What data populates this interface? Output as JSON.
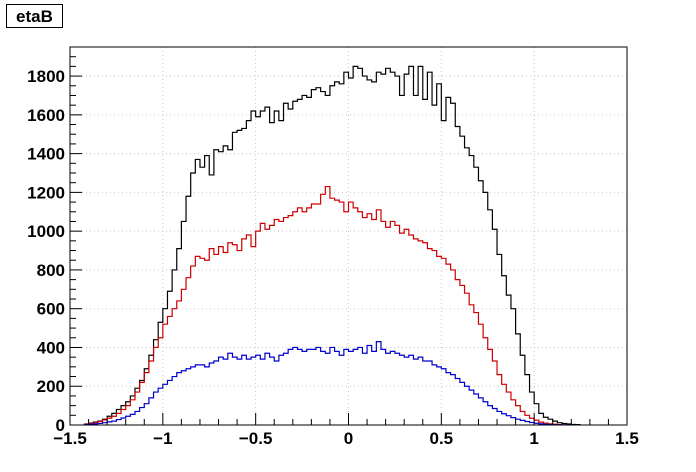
{
  "title": "etaB",
  "chart_data": {
    "type": "histogram",
    "title": "etaB",
    "xlabel": "",
    "ylabel": "",
    "xlim": [
      -1.5,
      1.5
    ],
    "ylim": [
      0,
      1950
    ],
    "grid": true,
    "bin_width": 0.025,
    "x_ticks": [
      -1.5,
      -1,
      -0.5,
      0,
      0.5,
      1,
      1.5
    ],
    "x_tick_labels": [
      "−1.5",
      "−1",
      "−0.5",
      "0",
      "0.5",
      "1",
      "1.5"
    ],
    "y_ticks": [
      0,
      200,
      400,
      600,
      800,
      1000,
      1200,
      1400,
      1600,
      1800
    ],
    "y_tick_labels": [
      "0",
      "200",
      "400",
      "600",
      "800",
      "1000",
      "1200",
      "1400",
      "1600",
      "1800"
    ],
    "series": [
      {
        "color": "#000000",
        "x_start": -1.425,
        "values": [
          5,
          10,
          15,
          20,
          30,
          45,
          60,
          80,
          100,
          120,
          150,
          190,
          230,
          290,
          360,
          440,
          530,
          600,
          690,
          800,
          910,
          1050,
          1180,
          1300,
          1370,
          1330,
          1390,
          1290,
          1420,
          1410,
          1440,
          1420,
          1510,
          1520,
          1530,
          1570,
          1620,
          1590,
          1620,
          1640,
          1560,
          1620,
          1570,
          1660,
          1630,
          1670,
          1680,
          1700,
          1690,
          1730,
          1740,
          1720,
          1700,
          1750,
          1770,
          1760,
          1820,
          1790,
          1850,
          1840,
          1800,
          1780,
          1770,
          1820,
          1810,
          1840,
          1820,
          1800,
          1700,
          1810,
          1850,
          1700,
          1850,
          1680,
          1820,
          1650,
          1760,
          1570,
          1690,
          1660,
          1540,
          1490,
          1430,
          1390,
          1330,
          1260,
          1200,
          1110,
          1010,
          880,
          770,
          670,
          600,
          470,
          360,
          260,
          170,
          110,
          60,
          40,
          30,
          20,
          12,
          8,
          5,
          3,
          2
        ]
      },
      {
        "color": "#cc0000",
        "x_start": -1.425,
        "values": [
          4,
          8,
          12,
          18,
          26,
          35,
          45,
          60,
          80,
          100,
          130,
          170,
          220,
          270,
          330,
          400,
          450,
          520,
          560,
          600,
          640,
          700,
          760,
          820,
          870,
          860,
          850,
          910,
          880,
          920,
          890,
          940,
          930,
          900,
          960,
          980,
          920,
          1000,
          1040,
          1010,
          1030,
          1060,
          1050,
          1070,
          1080,
          1100,
          1120,
          1100,
          1120,
          1140,
          1140,
          1190,
          1230,
          1170,
          1160,
          1150,
          1100,
          1150,
          1120,
          1100,
          1070,
          1090,
          1060,
          1110,
          1050,
          1020,
          1050,
          1030,
          990,
          1010,
          980,
          960,
          950,
          940,
          910,
          900,
          870,
          860,
          830,
          800,
          750,
          720,
          680,
          620,
          580,
          520,
          450,
          390,
          330,
          260,
          210,
          170,
          130,
          100,
          70,
          50,
          35,
          25,
          15,
          10,
          6,
          4,
          2,
          1
        ]
      },
      {
        "color": "#0000cc",
        "x_start": -1.425,
        "values": [
          2,
          4,
          6,
          8,
          12,
          16,
          20,
          28,
          36,
          45,
          55,
          70,
          90,
          110,
          140,
          170,
          190,
          210,
          230,
          250,
          270,
          280,
          290,
          300,
          310,
          310,
          300,
          320,
          330,
          350,
          340,
          370,
          350,
          340,
          360,
          340,
          350,
          360,
          340,
          370,
          350,
          330,
          360,
          370,
          390,
          400,
          390,
          380,
          390,
          390,
          400,
          380,
          370,
          400,
          380,
          360,
          390,
          380,
          390,
          400,
          370,
          410,
          380,
          430,
          390,
          370,
          380,
          370,
          360,
          350,
          360,
          340,
          350,
          330,
          330,
          310,
          300,
          290,
          270,
          260,
          240,
          220,
          200,
          180,
          160,
          140,
          120,
          100,
          85,
          70,
          58,
          48,
          38,
          30,
          24,
          18,
          13,
          9,
          6,
          4,
          2,
          1,
          1,
          1,
          1
        ]
      }
    ]
  }
}
